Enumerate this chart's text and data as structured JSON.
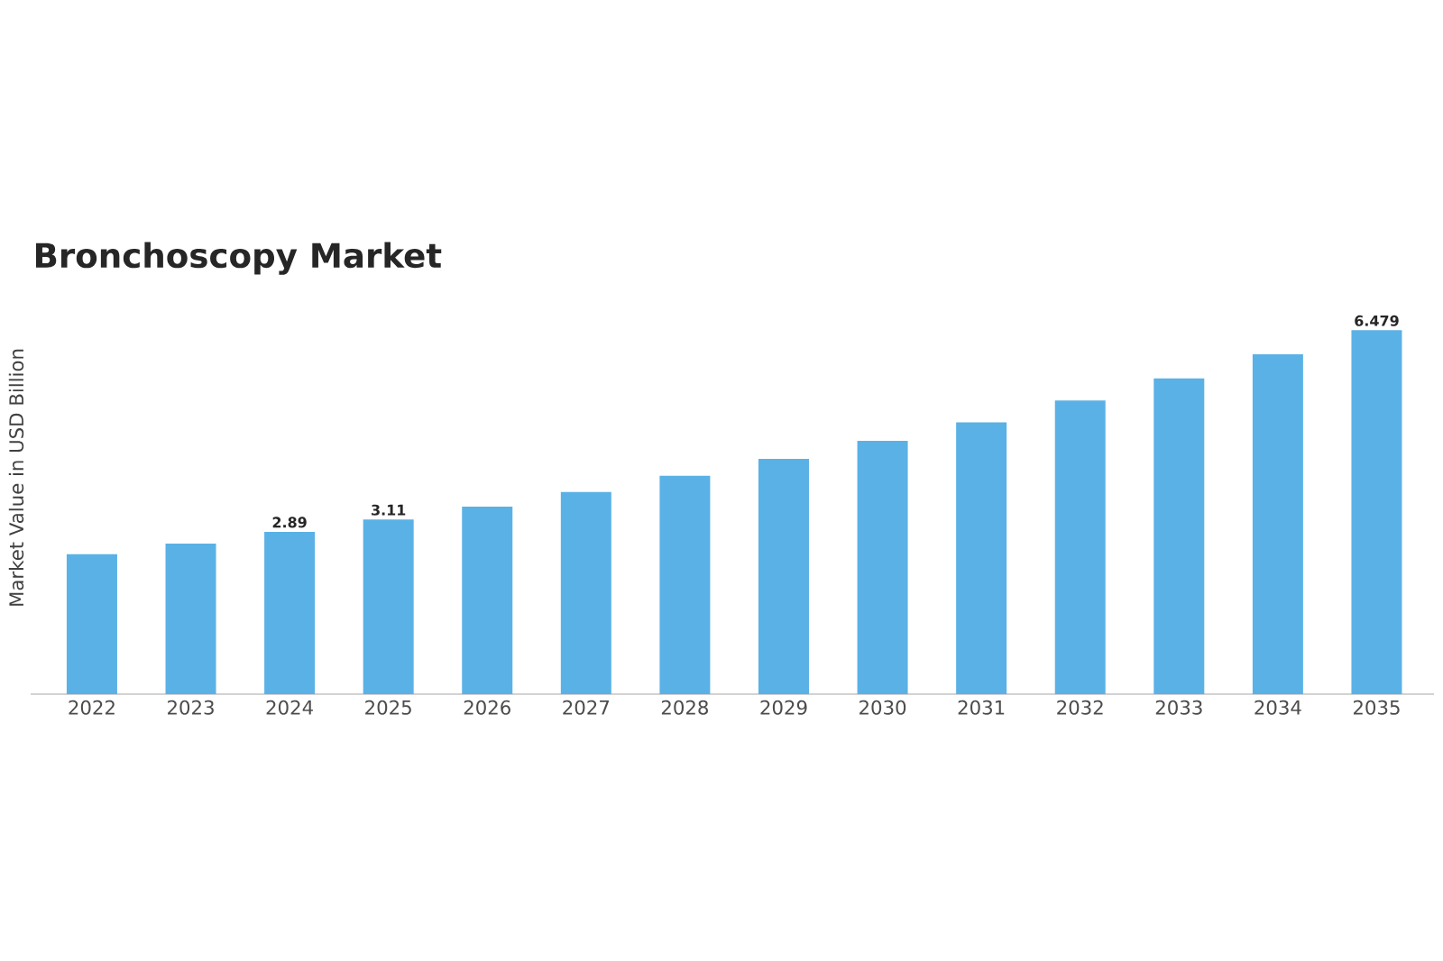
{
  "chart_data": {
    "type": "bar",
    "title": "Bronchoscopy Market",
    "ylabel": "Market Value in USD Billion",
    "categories": [
      "2022",
      "2023",
      "2024",
      "2025",
      "2026",
      "2027",
      "2028",
      "2029",
      "2030",
      "2031",
      "2032",
      "2033",
      "2034",
      "2035"
    ],
    "values": [
      2.49,
      2.68,
      2.89,
      3.11,
      3.34,
      3.6,
      3.89,
      4.19,
      4.51,
      4.84,
      5.23,
      5.62,
      6.05,
      6.479
    ],
    "value_labels": [
      null,
      null,
      "2.89",
      "3.11",
      null,
      null,
      null,
      null,
      null,
      null,
      null,
      null,
      null,
      "6.479"
    ],
    "color": "#5ab1e6"
  }
}
